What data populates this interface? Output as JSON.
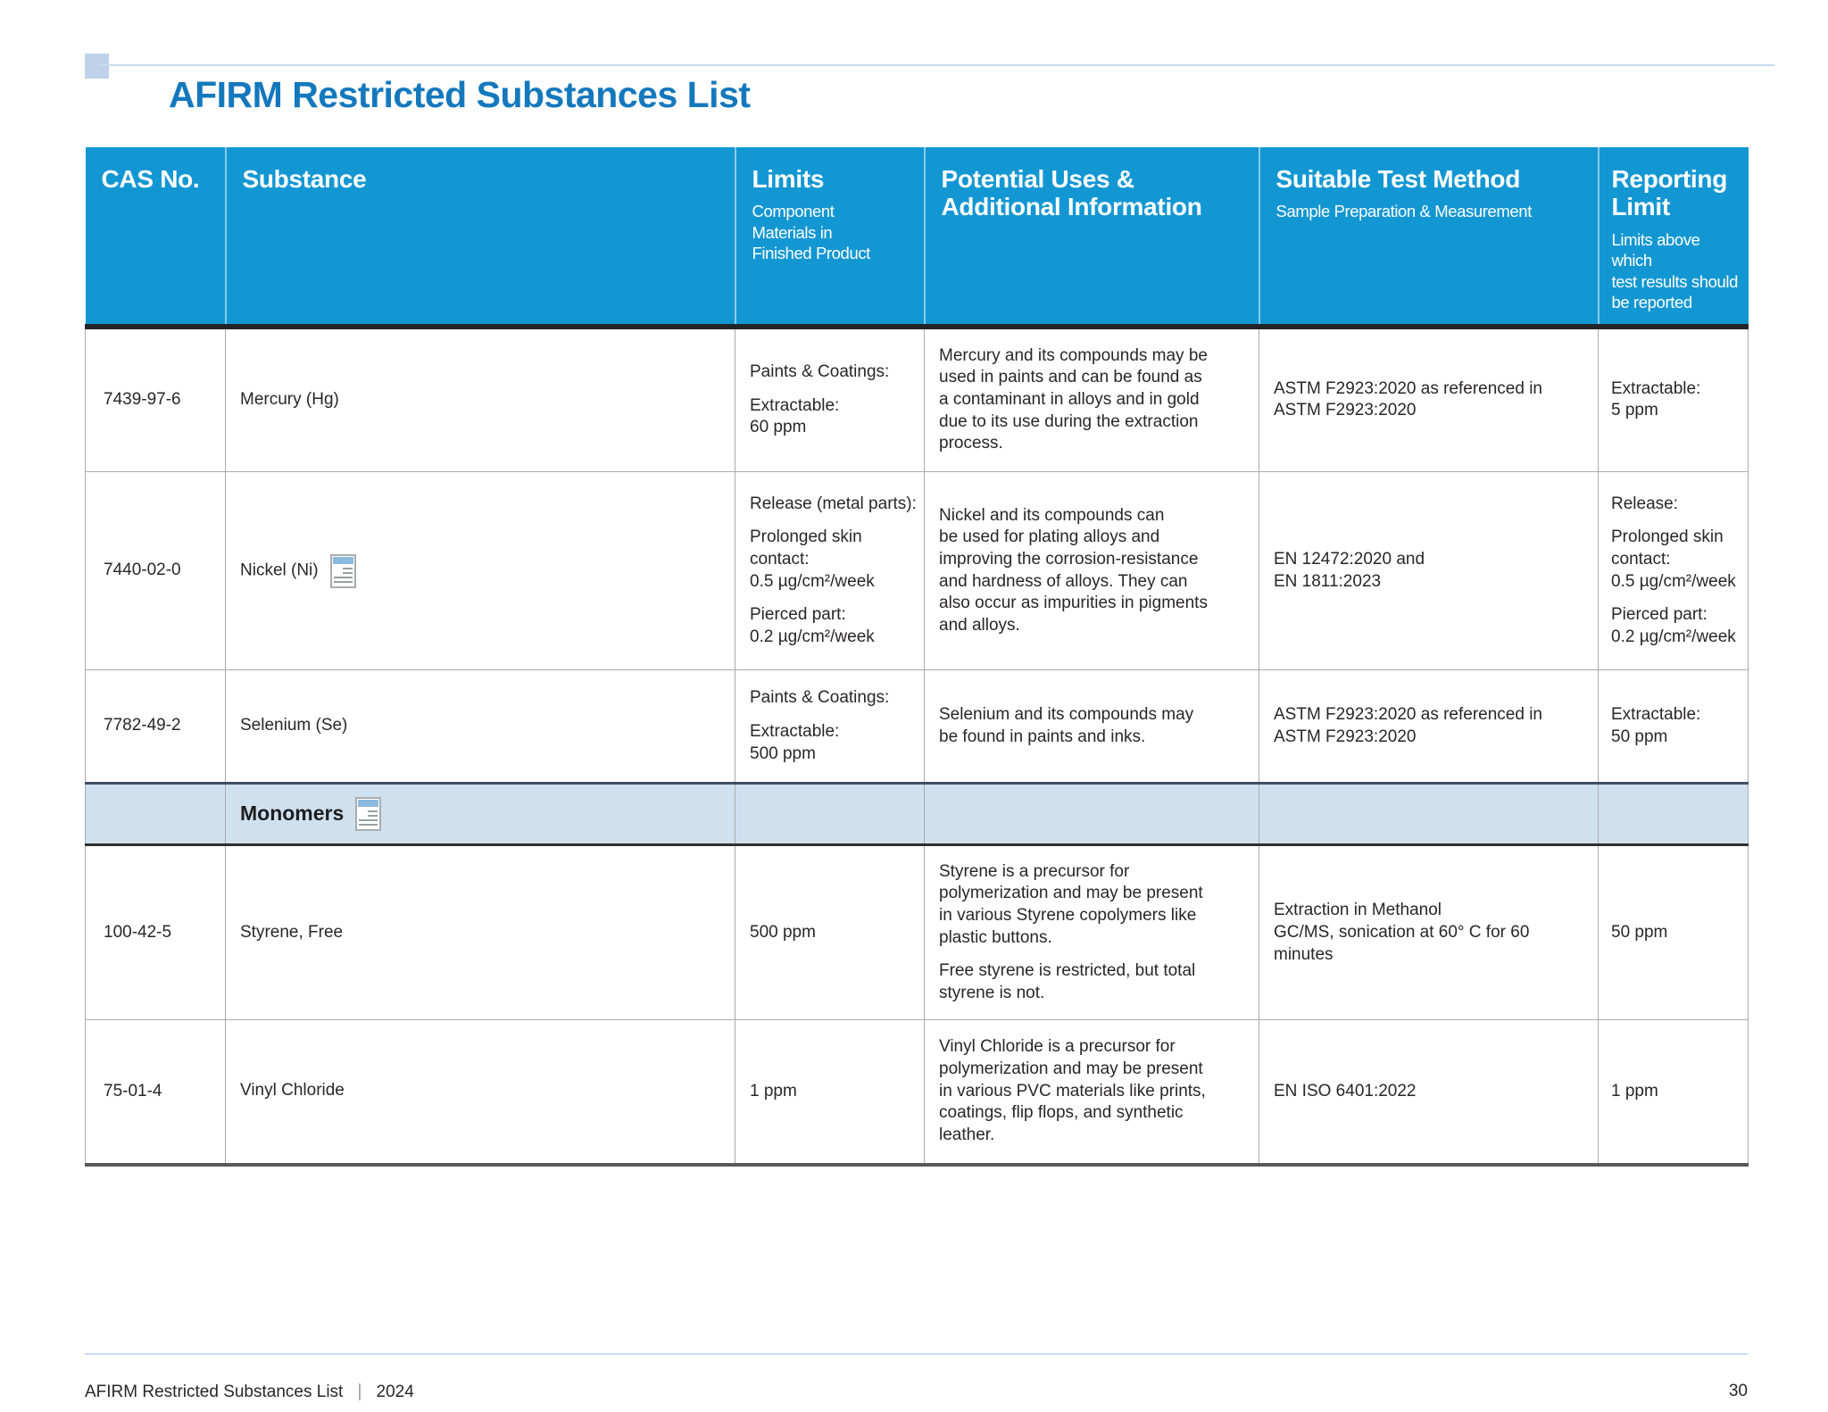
{
  "page": {
    "title": "AFIRM Restricted Substances List",
    "footer": {
      "doc_title": "AFIRM Restricted Substances List",
      "separator": "|",
      "year": "2024",
      "page_number": "30"
    },
    "icons": {
      "substance_note_icon": "note-annotation-icon"
    }
  },
  "colors": {
    "header_blue": "#1397d3",
    "title_blue": "#1478bd",
    "section_bg": "#cfe0ef",
    "pale_blue_square": "#bed2ea",
    "pale_blue_line": "#c9dcee",
    "grid": "#ababad",
    "text": "#2a2628",
    "header_underline": "#232428",
    "section_top": "#3f4e60",
    "section_bottom": "#2f2f31",
    "table_bottom": "#59595c"
  },
  "table": {
    "headers": [
      {
        "label": "CAS No.",
        "sub": ""
      },
      {
        "label": "Substance",
        "sub": ""
      },
      {
        "label": "Limits",
        "sub": "Component\nMaterials in\nFinished Product"
      },
      {
        "label": "Potential Uses &\nAdditional Information",
        "sub": ""
      },
      {
        "label": "Suitable Test Method",
        "sub": "Sample Preparation & Measurement"
      },
      {
        "label": "Reporting\nLimit",
        "sub": "Limits above which\ntest results should\nbe reported"
      }
    ],
    "rows": [
      {
        "type": "substance",
        "cas": "7439-97-6",
        "substance": "Mercury (Hg)",
        "icon": false,
        "limits": [
          "Paints & Coatings:",
          "Extractable:\n60 ppm"
        ],
        "uses": [
          "Mercury and its compounds may be\nused in paints and can be found as\na contaminant in alloys and in gold\ndue to its use during the extraction\nprocess."
        ],
        "method": [
          "ASTM F2923:2020 as referenced in\nASTM F2923:2020"
        ],
        "reporting": [
          "Extractable:\n5 ppm"
        ]
      },
      {
        "type": "substance",
        "cas": "7440-02-0",
        "substance": "Nickel (Ni)",
        "icon": true,
        "limits": [
          "Release (metal parts):",
          "Prolonged skin\ncontact:\n0.5 µg/cm²/week",
          "Pierced part:\n0.2 µg/cm²/week"
        ],
        "uses": [
          "Nickel and its compounds can\nbe used for plating alloys and\nimproving the corrosion-resistance\nand hardness of alloys. They can\nalso occur as impurities in pigments\nand alloys."
        ],
        "method": [
          "EN 12472:2020 and\nEN 1811:2023"
        ],
        "reporting": [
          "Release:",
          "Prolonged skin\ncontact:\n0.5 µg/cm²/week",
          "Pierced part:\n0.2 µg/cm²/week"
        ]
      },
      {
        "type": "substance",
        "cas": "7782-49-2",
        "substance": "Selenium (Se)",
        "icon": false,
        "limits": [
          "Paints & Coatings:",
          "Extractable:\n500 ppm"
        ],
        "uses": [
          "Selenium and its compounds may\nbe found in paints and inks."
        ],
        "method": [
          "ASTM F2923:2020 as referenced in\nASTM F2923:2020"
        ],
        "reporting": [
          "Extractable:\n50 ppm"
        ]
      },
      {
        "type": "section",
        "label": "Monomers",
        "icon": true
      },
      {
        "type": "substance",
        "cas": "100-42-5",
        "substance": "Styrene, Free",
        "icon": false,
        "limits": [
          "500 ppm"
        ],
        "uses": [
          "Styrene is a precursor for\npolymerization and may be present\nin various Styrene copolymers like\nplastic buttons.",
          "Free styrene is restricted, but total\nstyrene is not."
        ],
        "method": [
          "Extraction in Methanol\nGC/MS, sonication at 60° C for 60\nminutes"
        ],
        "reporting": [
          "50 ppm"
        ]
      },
      {
        "type": "substance",
        "cas": "75-01-4",
        "substance": "Vinyl Chloride",
        "icon": false,
        "limits": [
          "1 ppm"
        ],
        "uses": [
          "Vinyl Chloride is a precursor for\npolymerization and may be present\nin various PVC materials like prints,\ncoatings, flip flops, and synthetic\nleather."
        ],
        "method": [
          "EN ISO 6401:2022"
        ],
        "reporting": [
          "1 ppm"
        ]
      }
    ]
  }
}
